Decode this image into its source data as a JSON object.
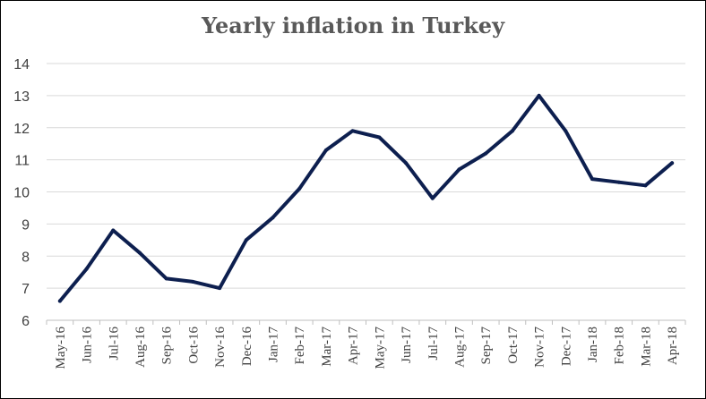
{
  "chart_data": {
    "type": "line",
    "title": "Yearly inflation in Turkey",
    "xlabel": "",
    "ylabel": "",
    "ylim": [
      6,
      14
    ],
    "yticks": [
      "6",
      "7",
      "8",
      "9",
      "10",
      "11",
      "12",
      "13",
      "14"
    ],
    "grid": true,
    "legend": "none",
    "categories": [
      "May-16",
      "Jun-16",
      "Jul-16",
      "Aug-16",
      "Sep-16",
      "Oct-16",
      "Nov-16",
      "Dec-16",
      "Jan-17",
      "Feb-17",
      "Mar-17",
      "Apr-17",
      "May-17",
      "Jun-17",
      "Jul-17",
      "Aug-17",
      "Sep-17",
      "Oct-17",
      "Nov-17",
      "Dec-17",
      "Jan-18",
      "Feb-18",
      "Mar-18",
      "Apr-18"
    ],
    "series": [
      {
        "values": [
          6.6,
          7.6,
          8.8,
          8.1,
          7.3,
          7.2,
          7.0,
          8.5,
          9.2,
          10.1,
          11.3,
          11.9,
          11.7,
          10.9,
          9.8,
          10.7,
          11.2,
          11.9,
          13.0,
          11.9,
          10.4,
          10.3,
          10.2,
          10.9
        ],
        "color": "#0d1f4f"
      }
    ],
    "colors": {
      "line": "#0d1f4f",
      "grid": "#d9d9d9",
      "axis": "#bfbfbf"
    }
  }
}
